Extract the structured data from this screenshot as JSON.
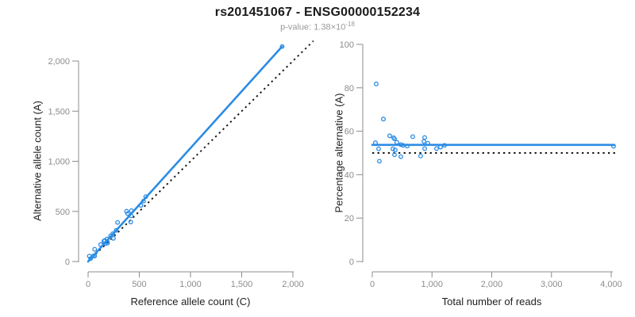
{
  "header": {
    "title": "rs201451067 - ENSG00000152234",
    "p_value_prefix": "p-value: ",
    "p_value_mantissa": "1.38",
    "p_value_times": "×10",
    "p_value_exponent": "-18"
  },
  "colors": {
    "accent_blue": "#2b8ce4",
    "dotted_black": "#141414",
    "axis_gray": "#8c8c8c",
    "tick_label_gray": "#8c8c8c",
    "title_black": "#1a1a1a",
    "subtitle_gray": "#9a9a9a"
  },
  "samples": {
    "ref": [
      12,
      64,
      24,
      51,
      64,
      123,
      166,
      154,
      162,
      189,
      187,
      186,
      221,
      247,
      241,
      274,
      288,
      416,
      386,
      376,
      421,
      423,
      516,
      541,
      563,
      1895
    ],
    "alt": [
      54,
      122,
      29,
      55,
      55,
      169,
      179,
      204,
      210,
      183,
      198,
      226,
      257,
      231,
      277,
      311,
      390,
      394,
      478,
      501,
      456,
      507,
      560,
      602,
      647,
      2145
    ],
    "total": [
      66,
      186,
      53,
      106,
      119,
      292,
      345,
      358,
      372,
      372,
      385,
      412,
      478,
      478,
      518,
      585,
      678,
      810,
      864,
      877,
      877,
      930,
      1076,
      1143,
      1210,
      4040
    ],
    "pct": [
      81.8,
      65.6,
      54.7,
      51.9,
      46.2,
      57.9,
      51.9,
      57.0,
      56.5,
      49.2,
      51.4,
      54.9,
      53.8,
      48.3,
      53.5,
      53.2,
      57.5,
      48.6,
      55.3,
      57.1,
      52.0,
      54.5,
      52.0,
      52.7,
      53.5,
      53.1
    ]
  },
  "chart_data": [
    {
      "type": "scatter",
      "panel": "left",
      "xlabel": "Reference allele count (C)",
      "ylabel": "Alternative allele count (A)",
      "xlim": [
        0,
        2200
      ],
      "ylim": [
        0,
        2200
      ],
      "x_field": "ref",
      "y_field": "alt",
      "marker": "open-circle",
      "grid": false,
      "xticks": {
        "values": [
          0,
          500,
          1000,
          1500,
          2000
        ],
        "labels": [
          "0",
          "500",
          "1,000",
          "1,500",
          "2,000"
        ]
      },
      "yticks": {
        "values": [
          0,
          500,
          1000,
          1500,
          2000
        ],
        "labels": [
          "0",
          "500",
          "1,000",
          "1,500",
          "2,000"
        ]
      },
      "lines": [
        {
          "name": "fit-line",
          "style": "solid",
          "x1": 0,
          "y1": 0,
          "x2": 1895,
          "y2": 2145
        },
        {
          "name": "identity-line",
          "style": "dotted",
          "x1": 0,
          "y1": 0,
          "x2": 2200,
          "y2": 2200
        }
      ]
    },
    {
      "type": "scatter",
      "panel": "right",
      "xlabel": "Total number of reads",
      "ylabel": "Percentage alternative (A)",
      "xlim": [
        0,
        4100
      ],
      "ylim": [
        0,
        100
      ],
      "x_field": "total",
      "y_field": "pct",
      "marker": "open-circle",
      "grid": false,
      "xticks": {
        "values": [
          0,
          1000,
          2000,
          3000,
          4000
        ],
        "labels": [
          "0",
          "1,000",
          "2,000",
          "3,000",
          "4,000"
        ]
      },
      "yticks": {
        "values": [
          0,
          20,
          40,
          60,
          80,
          100
        ],
        "labels": [
          "0",
          "20",
          "40",
          "60",
          "80",
          "100"
        ]
      },
      "lines": [
        {
          "name": "mean-line",
          "style": "solid",
          "x1": 0,
          "y1": 53.7,
          "x2": 4053,
          "y2": 53.7
        },
        {
          "name": "null-line",
          "style": "dotted",
          "x1": 0,
          "y1": 50,
          "x2": 4066,
          "y2": 50
        }
      ]
    }
  ]
}
